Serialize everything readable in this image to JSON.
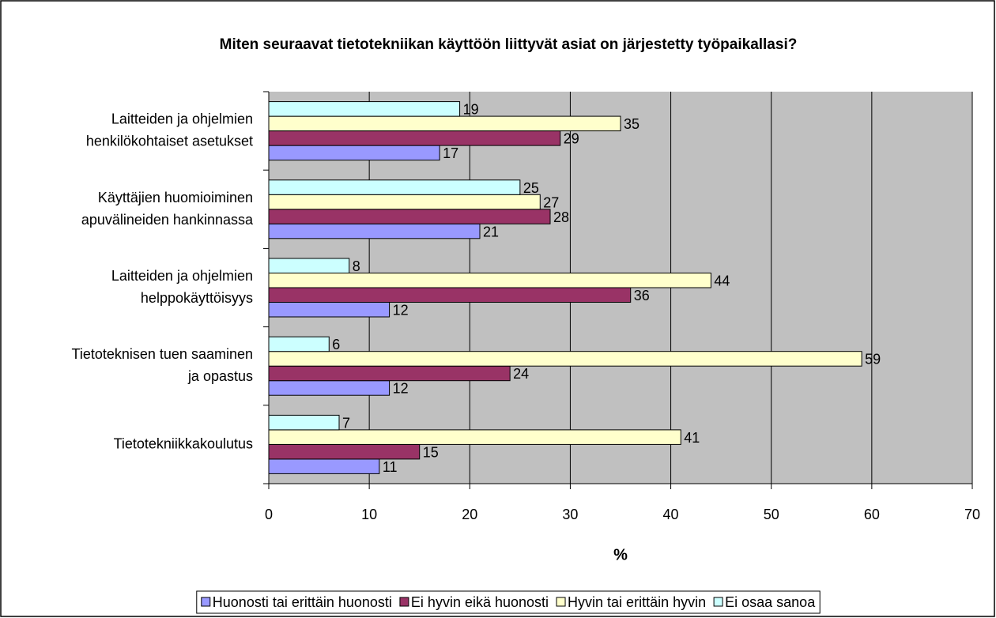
{
  "chart_data": {
    "type": "bar",
    "orientation": "horizontal",
    "title": "Miten seuraavat tietotekniikan käyttöön liittyvät asiat on järjestetty työpaikallasi?",
    "xlabel": "%",
    "categories": [
      [
        "Laitteiden ja ohjelmien",
        "henkilökohtaiset asetukset"
      ],
      [
        "Käyttäjien huomioiminen",
        "apuvälineiden hankinnassa"
      ],
      [
        "Laitteiden ja ohjelmien",
        "helppokäyttöisyys"
      ],
      [
        "Tietoteknisen tuen saaminen",
        "ja opastus"
      ],
      [
        "Tietotekniikkakoulutus"
      ]
    ],
    "series": [
      {
        "name": "Huonosti tai erittäin huonosti",
        "color": "#9999ff",
        "values": [
          17,
          21,
          12,
          12,
          11
        ]
      },
      {
        "name": "Ei hyvin eikä huonosti",
        "color": "#993366",
        "values": [
          29,
          28,
          36,
          24,
          15
        ]
      },
      {
        "name": "Hyvin tai erittäin hyvin",
        "color": "#ffffcc",
        "values": [
          35,
          27,
          44,
          59,
          41
        ]
      },
      {
        "name": "Ei osaa sanoa",
        "color": "#ccffff",
        "values": [
          19,
          25,
          8,
          6,
          7
        ]
      }
    ],
    "xlim": [
      0,
      70
    ],
    "xticks": [
      0,
      10,
      20,
      30,
      40,
      50,
      60,
      70
    ],
    "grid": true,
    "legend": "bottom"
  }
}
